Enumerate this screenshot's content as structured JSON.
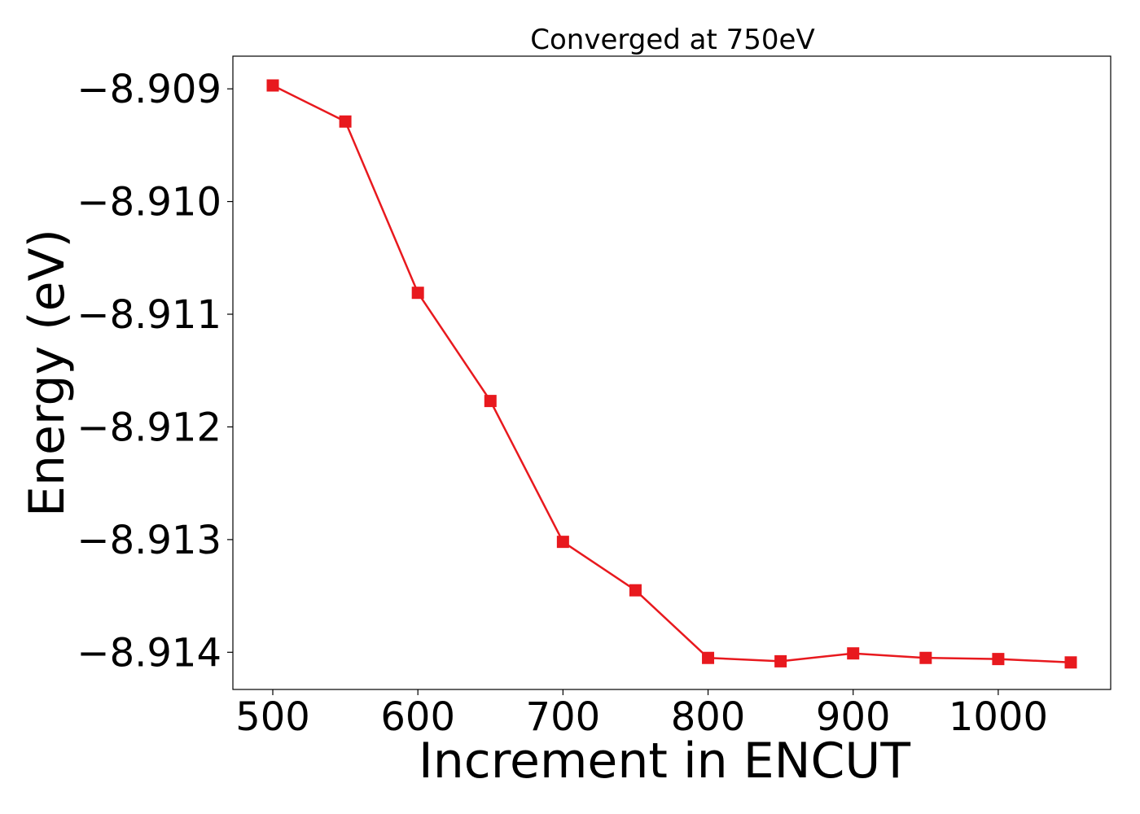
{
  "chart_data": {
    "type": "line",
    "title": "Converged at 750eV",
    "xlabel": "Increment in ENCUT",
    "ylabel": "Energy (eV)",
    "x": [
      500,
      550,
      600,
      650,
      700,
      750,
      800,
      850,
      900,
      950,
      1000,
      1050
    ],
    "series": [
      {
        "values": [
          -8.90897,
          -8.90929,
          -8.91081,
          -8.91177,
          -8.91302,
          -8.91345,
          -8.91405,
          -8.91408,
          -8.91401,
          -8.91405,
          -8.91406,
          -8.91409
        ],
        "color": "#e8191e",
        "marker": "square"
      }
    ],
    "xlim": [
      472.5,
      1077.5
    ],
    "ylim": [
      -8.91433,
      -8.90871
    ],
    "xticks": [
      500,
      600,
      700,
      800,
      900,
      1000
    ],
    "xtick_labels": [
      "500",
      "600",
      "700",
      "800",
      "900",
      "1000"
    ],
    "yticks": [
      -8.909,
      -8.91,
      -8.911,
      -8.912,
      -8.913,
      -8.914
    ],
    "ytick_labels": [
      "−8.909",
      "−8.910",
      "−8.911",
      "−8.912",
      "−8.913",
      "−8.914"
    ],
    "grid": false,
    "legend": "none"
  }
}
